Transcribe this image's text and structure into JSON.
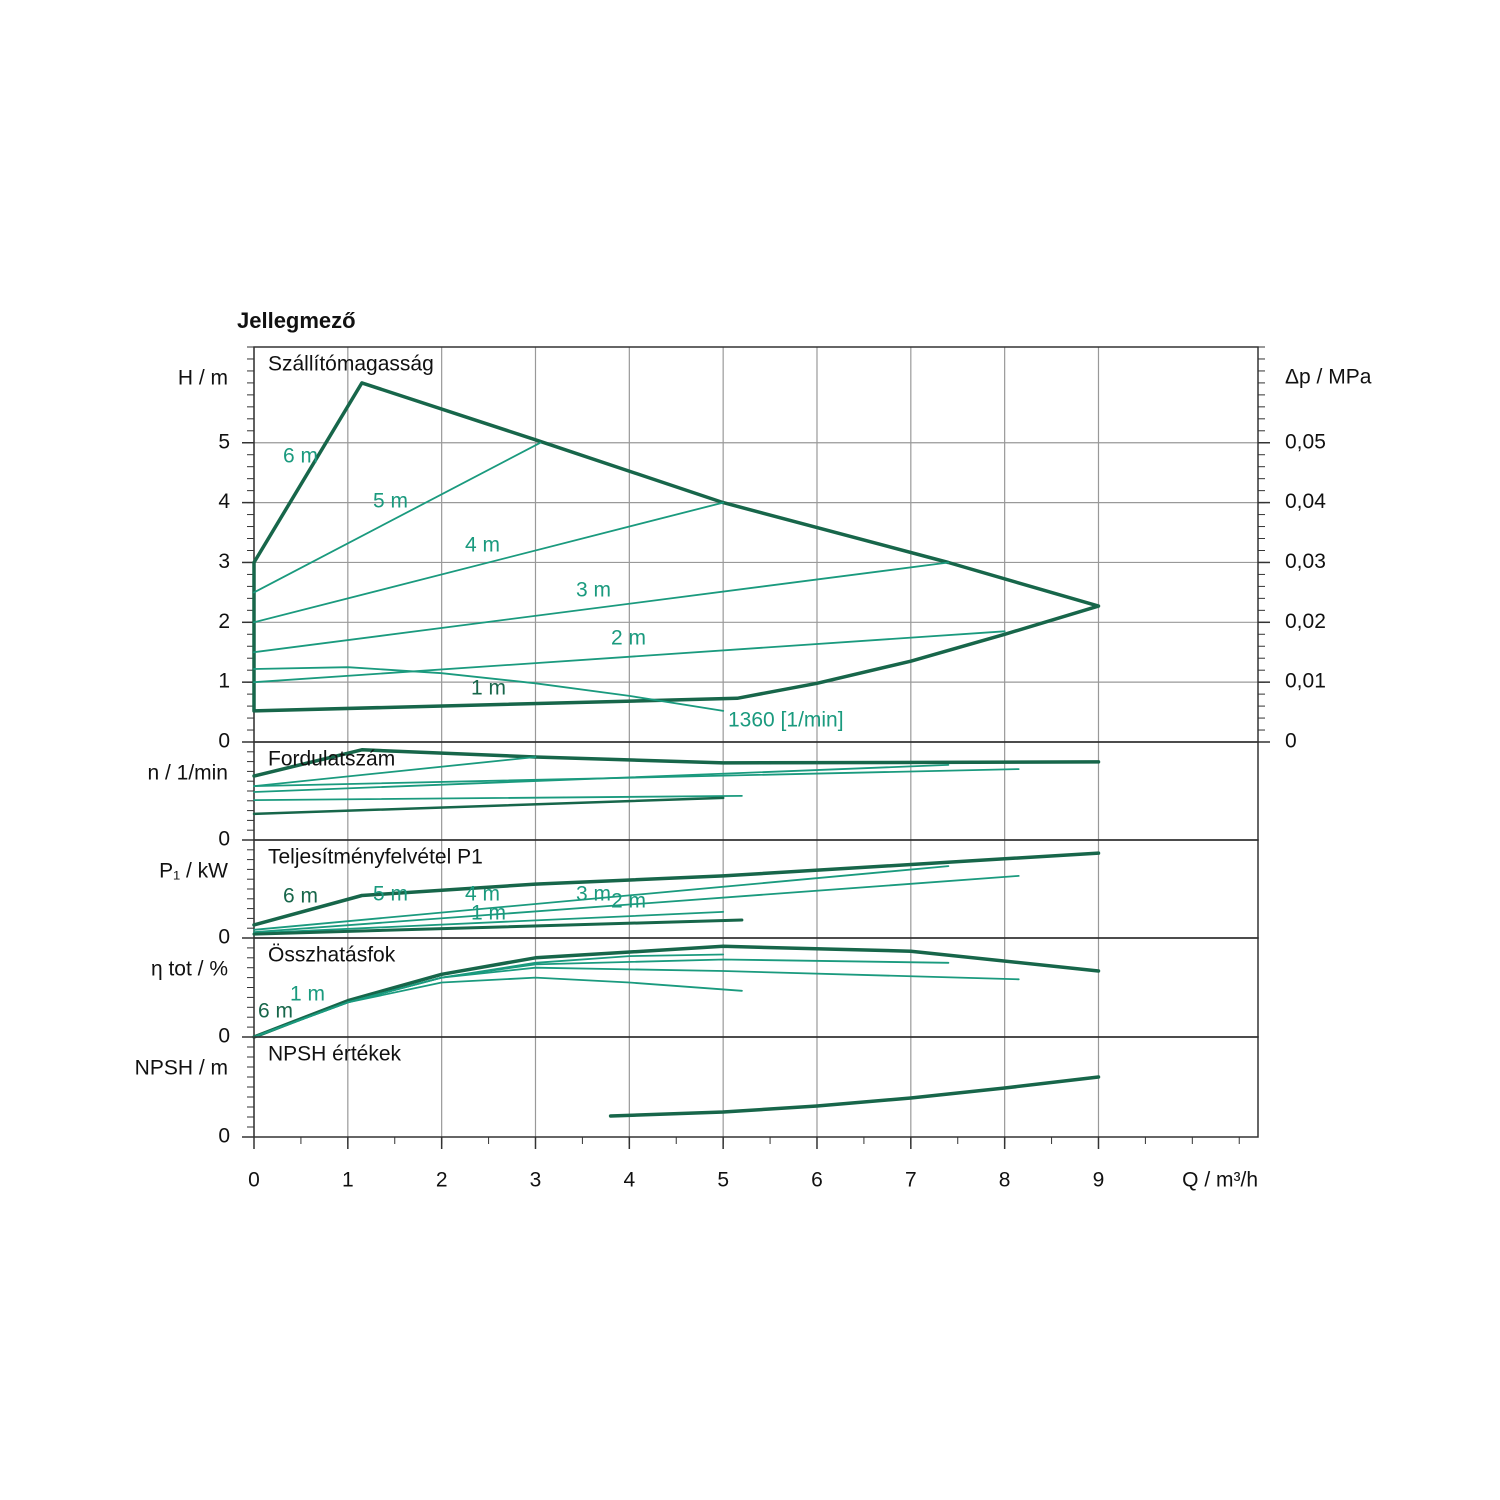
{
  "title": "Jellegmező",
  "chart_data": [
    {
      "type": "line",
      "title": "Szállítómagasság",
      "y_label": "H / m",
      "y2_label": "Δp / MPa",
      "ylim": [
        0,
        6.6
      ],
      "yticks": [
        0,
        1,
        2,
        3,
        4,
        5
      ],
      "y2lim": [
        0,
        0.066
      ],
      "y2ticks": [
        0,
        {
          "value": 0.01,
          "label": "0,01"
        },
        {
          "value": 0.02,
          "label": "0,02"
        },
        {
          "value": 0.03,
          "label": "0,03"
        },
        {
          "value": 0.04,
          "label": "0,04"
        },
        {
          "value": 0.05,
          "label": "0,05"
        }
      ],
      "grid": true,
      "series": [
        {
          "color": "#17664a",
          "line_width": 3.5,
          "x": [
            0,
            1.15,
            3,
            5,
            7.4,
            9,
            8,
            7,
            6,
            5.15,
            0,
            0
          ],
          "values": [
            3,
            6,
            5.05,
            4,
            3,
            2.27,
            1.8,
            1.35,
            0.98,
            0.73,
            0.52,
            3
          ]
        },
        {
          "color": "#1a9a7e",
          "line_width": 1.8,
          "x": [
            0,
            3.05
          ],
          "values": [
            2.5,
            5.0
          ]
        },
        {
          "color": "#1a9a7e",
          "line_width": 1.8,
          "x": [
            0,
            5
          ],
          "values": [
            2,
            4
          ]
        },
        {
          "color": "#1a9a7e",
          "line_width": 1.8,
          "x": [
            0,
            7.4
          ],
          "values": [
            1.5,
            3
          ]
        },
        {
          "color": "#1a9a7e",
          "line_width": 1.8,
          "x": [
            0,
            8
          ],
          "values": [
            1,
            1.85
          ]
        },
        {
          "color": "#1a9a7e",
          "line_width": 1.8,
          "x": [
            0,
            1,
            2,
            3,
            4,
            5
          ],
          "values": [
            1.22,
            1.25,
            1.15,
            0.98,
            0.77,
            0.52
          ]
        }
      ],
      "annotations": [
        {
          "text": "6 m",
          "color": "#1a9a7e"
        },
        {
          "text": "5 m",
          "color": "#1a9a7e"
        },
        {
          "text": "4 m",
          "color": "#1a9a7e"
        },
        {
          "text": "3 m",
          "color": "#1a9a7e"
        },
        {
          "text": "2 m",
          "color": "#1a9a7e"
        },
        {
          "text": "1 m",
          "color": "#17664a"
        },
        {
          "text": "1360 [1/min]",
          "color": "#1a9a7e"
        }
      ]
    },
    {
      "type": "line",
      "title": "Fordulatszám",
      "y_label": "n / 1/min",
      "ylim": [
        0,
        3000
      ],
      "yticks": [
        0
      ],
      "grid": true,
      "series": [
        {
          "color": "#17664a",
          "line_width": 3.5,
          "x": [
            0,
            1.15,
            3,
            5,
            9
          ],
          "values": [
            1960,
            2760,
            2540,
            2360,
            2390
          ]
        },
        {
          "color": "#1a9a7e",
          "line_width": 1.8,
          "x": [
            0,
            3
          ],
          "values": [
            1650,
            2540
          ]
        },
        {
          "color": "#1a9a7e",
          "line_width": 1.8,
          "x": [
            0,
            8.15
          ],
          "values": [
            1650,
            2170
          ]
        },
        {
          "color": "#1a9a7e",
          "line_width": 1.8,
          "x": [
            0,
            7.4
          ],
          "values": [
            1470,
            2300
          ]
        },
        {
          "color": "#1a9a7e",
          "line_width": 1.8,
          "x": [
            0,
            5.2
          ],
          "values": [
            1220,
            1350
          ]
        },
        {
          "color": "#17664a",
          "line_width": 2.5,
          "x": [
            0,
            5
          ],
          "values": [
            800,
            1290
          ]
        }
      ]
    },
    {
      "type": "line",
      "title": "Teljesítményfelvétel P1",
      "y_label": "P₁ / kW",
      "ylim": [
        0,
        0.3
      ],
      "yticks": [
        0
      ],
      "grid": true,
      "series": [
        {
          "color": "#17664a",
          "line_width": 3.5,
          "x": [
            0,
            1.15,
            3,
            5,
            9
          ],
          "values": [
            0.04,
            0.13,
            0.165,
            0.19,
            0.26
          ]
        },
        {
          "color": "#1a9a7e",
          "line_width": 1.8,
          "x": [
            0,
            7.4
          ],
          "values": [
            0.025,
            0.22
          ]
        },
        {
          "color": "#1a9a7e",
          "line_width": 1.8,
          "x": [
            0,
            8.15
          ],
          "values": [
            0.018,
            0.19
          ]
        },
        {
          "color": "#1a9a7e",
          "line_width": 1.8,
          "x": [
            0,
            5
          ],
          "values": [
            0.015,
            0.08
          ]
        },
        {
          "color": "#17664a",
          "line_width": 3,
          "x": [
            0,
            5.2
          ],
          "values": [
            0.012,
            0.055
          ]
        }
      ],
      "annotations": [
        {
          "text": "6 m",
          "color": "#17664a"
        },
        {
          "text": "5 m",
          "color": "#1a9a7e"
        },
        {
          "text": "4 m",
          "color": "#1a9a7e"
        },
        {
          "text": "3 m",
          "color": "#1a9a7e"
        },
        {
          "text": "2 m",
          "color": "#1a9a7e"
        },
        {
          "text": "1 m",
          "color": "#1a9a7e"
        }
      ]
    },
    {
      "type": "line",
      "title": "Összhatásfok",
      "y_label": "η tot / %",
      "ylim": [
        0,
        60
      ],
      "yticks": [
        0
      ],
      "grid": true,
      "series": [
        {
          "color": "#17664a",
          "line_width": 3.5,
          "x": [
            0,
            1,
            2,
            3,
            5,
            7,
            9
          ],
          "values": [
            0,
            22,
            38,
            48,
            55,
            52,
            40
          ]
        },
        {
          "color": "#1a9a7e",
          "line_width": 1.8,
          "x": [
            0,
            1,
            2,
            3,
            4,
            5.2
          ],
          "values": [
            0,
            21,
            33,
            36,
            33,
            28
          ]
        },
        {
          "color": "#1a9a7e",
          "line_width": 1.8,
          "x": [
            0,
            1,
            2,
            3,
            4,
            5
          ],
          "values": [
            0,
            21,
            36,
            45,
            49,
            50
          ]
        },
        {
          "color": "#1a9a7e",
          "line_width": 1.8,
          "x": [
            0,
            1,
            2,
            3,
            5,
            7.4
          ],
          "values": [
            0,
            21,
            36,
            44,
            47,
            45
          ]
        },
        {
          "color": "#1a9a7e",
          "line_width": 1.8,
          "x": [
            0,
            1,
            2,
            3,
            5,
            8.15
          ],
          "values": [
            0,
            21,
            36,
            42,
            40,
            35
          ]
        }
      ],
      "annotations": [
        {
          "text": "6 m",
          "color": "#17664a"
        },
        {
          "text": "1 m",
          "color": "#1a9a7e"
        }
      ]
    },
    {
      "type": "line",
      "title": "NPSH értékek",
      "y_label": "NPSH / m",
      "ylim": [
        0,
        3
      ],
      "yticks": [
        0
      ],
      "grid": true,
      "xlim": [
        0,
        10.7
      ],
      "xticks": [
        0,
        1,
        2,
        3,
        4,
        5,
        6,
        7,
        8,
        9
      ],
      "x_label": "Q / m³/h",
      "series": [
        {
          "color": "#17664a",
          "line_width": 3.5,
          "x": [
            3.8,
            5,
            6,
            7,
            8,
            9
          ],
          "values": [
            0.63,
            0.75,
            0.93,
            1.17,
            1.47,
            1.8
          ]
        }
      ]
    }
  ]
}
